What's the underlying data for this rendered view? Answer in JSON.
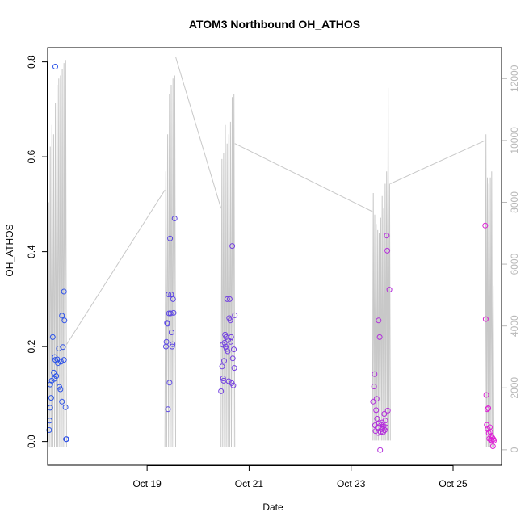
{
  "chart_data": {
    "type": "scatter",
    "title": "ATOM3 Northbound OH_ATHOS",
    "xlabel": "Date",
    "ylabel": "OH_ATHOS",
    "x_tick_labels": [
      "Oct 19",
      "Oct 21",
      "Oct 23",
      "Oct 25"
    ],
    "x_ticks_day": [
      19,
      21,
      23,
      25
    ],
    "xlim_day": [
      17.05,
      25.95
    ],
    "ylim": [
      -0.05,
      0.83
    ],
    "y_ticks": [
      0.0,
      0.2,
      0.4,
      0.6,
      0.8
    ],
    "y_tick_labels": [
      "0.0",
      "0.2",
      "0.4",
      "0.6",
      "0.8"
    ],
    "y2lim": [
      -500,
      13000
    ],
    "y2_ticks": [
      0,
      2000,
      4000,
      6000,
      8000,
      10000,
      12000
    ],
    "y2_tick_labels": [
      "0",
      "2000",
      "4000",
      "6000",
      "8000",
      "10000",
      "12000"
    ],
    "grid": false,
    "colors": {
      "altitude_line": "#c8c8c8",
      "point_start": "#2a55e8",
      "point_end": "#e020d6",
      "axis": "#000000",
      "right_axis": "#b8b8b8"
    },
    "series": [
      {
        "y_axis": "left",
        "points": [
          [
            17.2,
            0.79
          ],
          [
            17.08,
            0.024
          ],
          [
            17.09,
            0.044
          ],
          [
            17.1,
            0.071
          ],
          [
            17.12,
            0.092
          ],
          [
            17.1,
            0.12
          ],
          [
            17.13,
            0.128
          ],
          [
            17.15,
            0.22
          ],
          [
            17.17,
            0.145
          ],
          [
            17.18,
            0.132
          ],
          [
            17.19,
            0.178
          ],
          [
            17.2,
            0.172
          ],
          [
            17.22,
            0.138
          ],
          [
            17.24,
            0.173
          ],
          [
            17.25,
            0.165
          ],
          [
            17.27,
            0.196
          ],
          [
            17.28,
            0.115
          ],
          [
            17.3,
            0.11
          ],
          [
            17.31,
            0.168
          ],
          [
            17.33,
            0.084
          ],
          [
            17.35,
            0.199
          ],
          [
            17.37,
            0.172
          ],
          [
            17.38,
            0.255
          ],
          [
            17.41,
            0.005
          ],
          [
            17.42,
            0.005
          ],
          [
            17.4,
            0.072
          ],
          [
            17.37,
            0.316
          ],
          [
            17.33,
            0.265
          ],
          [
            19.37,
            0.2
          ],
          [
            19.38,
            0.21
          ],
          [
            19.39,
            0.25
          ],
          [
            19.4,
            0.248
          ],
          [
            19.41,
            0.068
          ],
          [
            19.42,
            0.31
          ],
          [
            19.43,
            0.27
          ],
          [
            19.44,
            0.124
          ],
          [
            19.45,
            0.428
          ],
          [
            19.46,
            0.27
          ],
          [
            19.47,
            0.31
          ],
          [
            19.48,
            0.23
          ],
          [
            19.49,
            0.2
          ],
          [
            19.5,
            0.205
          ],
          [
            19.51,
            0.3
          ],
          [
            19.52,
            0.271
          ],
          [
            19.54,
            0.47
          ],
          [
            20.45,
            0.106
          ],
          [
            20.47,
            0.158
          ],
          [
            20.48,
            0.204
          ],
          [
            20.49,
            0.133
          ],
          [
            20.5,
            0.128
          ],
          [
            20.51,
            0.17
          ],
          [
            20.52,
            0.208
          ],
          [
            20.53,
            0.225
          ],
          [
            20.54,
            0.2
          ],
          [
            20.55,
            0.22
          ],
          [
            20.56,
            0.195
          ],
          [
            20.57,
            0.3
          ],
          [
            20.58,
            0.19
          ],
          [
            20.59,
            0.214
          ],
          [
            20.6,
            0.127
          ],
          [
            20.61,
            0.26
          ],
          [
            20.62,
            0.3
          ],
          [
            20.63,
            0.255
          ],
          [
            20.64,
            0.21
          ],
          [
            20.65,
            0.22
          ],
          [
            20.66,
            0.123
          ],
          [
            20.67,
            0.412
          ],
          [
            20.68,
            0.175
          ],
          [
            20.69,
            0.118
          ],
          [
            20.7,
            0.194
          ],
          [
            20.71,
            0.155
          ],
          [
            20.72,
            0.266
          ],
          [
            23.43,
            0.084
          ],
          [
            23.45,
            0.116
          ],
          [
            23.46,
            0.142
          ],
          [
            23.47,
            0.034
          ],
          [
            23.48,
            0.022
          ],
          [
            23.49,
            0.066
          ],
          [
            23.5,
            0.09
          ],
          [
            23.51,
            0.048
          ],
          [
            23.52,
            0.03
          ],
          [
            23.53,
            0.018
          ],
          [
            23.54,
            0.255
          ],
          [
            23.55,
            0.038
          ],
          [
            23.56,
            0.22
          ],
          [
            23.57,
            -0.018
          ],
          [
            23.58,
            0.02
          ],
          [
            23.59,
            0.035
          ],
          [
            23.6,
            0.026
          ],
          [
            23.61,
            0.04
          ],
          [
            23.62,
            0.03
          ],
          [
            23.63,
            0.02
          ],
          [
            23.64,
            0.032
          ],
          [
            23.65,
            0.058
          ],
          [
            23.66,
            0.024
          ],
          [
            23.67,
            0.044
          ],
          [
            23.68,
            0.03
          ],
          [
            23.7,
            0.434
          ],
          [
            23.71,
            0.402
          ],
          [
            23.72,
            0.065
          ],
          [
            23.75,
            0.32
          ],
          [
            25.63,
            0.455
          ],
          [
            25.64,
            0.258
          ],
          [
            25.65,
            0.098
          ],
          [
            25.66,
            0.035
          ],
          [
            25.67,
            0.068
          ],
          [
            25.68,
            0.026
          ],
          [
            25.69,
            0.07
          ],
          [
            25.7,
            0.018
          ],
          [
            25.71,
            0.006
          ],
          [
            25.72,
            0.03
          ],
          [
            25.73,
            0.02
          ],
          [
            25.74,
            0.004
          ],
          [
            25.75,
            0.012
          ],
          [
            25.76,
            0.002
          ],
          [
            25.77,
            0.008
          ],
          [
            25.78,
            -0.01
          ],
          [
            25.79,
            0.005
          ],
          [
            25.8,
            0.002
          ]
        ]
      },
      {
        "y_axis": "right",
        "flights": [
          {
            "start": 17.05,
            "end": 17.42,
            "peaks": 11,
            "peak_values": [
              8000,
              9800,
              10500,
              10200,
              11200,
              11800,
              12000,
              12100,
              12300,
              12500,
              12600
            ],
            "trough_values": [
              5400,
              100,
              100,
              100,
              100,
              100,
              100,
              100,
              100,
              100,
              100
            ]
          },
          {
            "start": 19.35,
            "end": 19.56,
            "peaks": 6,
            "peak_values": [
              9000,
              10200,
              11500,
              11800,
              12000,
              12100
            ],
            "trough_values": [
              100,
              100,
              100,
              100,
              100,
              100
            ]
          },
          {
            "start": 20.45,
            "end": 20.72,
            "peaks": 8,
            "peak_values": [
              9400,
              9600,
              10500,
              9900,
              10200,
              10600,
              11400,
              11500
            ],
            "trough_values": [
              100,
              100,
              100,
              100,
              100,
              100,
              100,
              100
            ]
          },
          {
            "start": 23.42,
            "end": 23.77,
            "peaks": 12,
            "peak_values": [
              8300,
              7600,
              7300,
              7100,
              7000,
              7500,
              8200,
              7800,
              8600,
              9000,
              11700,
              8600
            ],
            "trough_values": [
              300,
              300,
              300,
              300,
              300,
              300,
              300,
              300,
              300,
              300,
              300,
              300
            ]
          },
          {
            "start": 25.63,
            "end": 25.8,
            "peaks": 6,
            "peak_values": [
              10200,
              8800,
              8600,
              8800,
              9000,
              5300
            ],
            "trough_values": [
              100,
              100,
              100,
              100,
              100,
              100
            ]
          }
        ],
        "connectors": [
          [
            17.42,
            3400,
            19.35,
            8400
          ],
          [
            19.56,
            12700,
            20.45,
            7800
          ],
          [
            20.72,
            9900,
            23.42,
            7700
          ],
          [
            23.77,
            8600,
            25.63,
            10000
          ]
        ]
      }
    ]
  }
}
